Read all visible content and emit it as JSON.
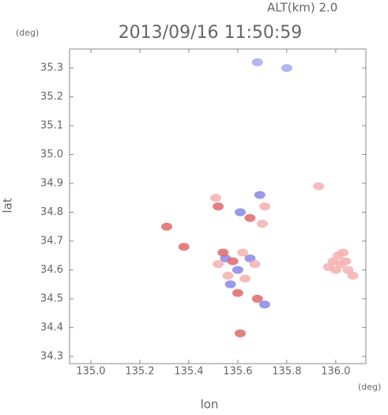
{
  "chart_data": {
    "type": "map",
    "title": "2013/09/16 11:50:59",
    "altitude_label": "ALT(km) 2.0",
    "y_unit": "(deg)",
    "x_unit": "(deg)",
    "xlabel": "lon",
    "ylabel": "lat",
    "xlim": [
      134.913,
      136.123
    ],
    "ylim": [
      34.275,
      35.366
    ],
    "xticks": [
      {
        "value": 135,
        "label": "135.0"
      },
      135.2,
      135.4,
      135.6,
      135.8,
      {
        "value": 136,
        "label": "136.0"
      }
    ],
    "yticks": [
      35.3,
      35.2,
      35.1,
      {
        "value": 35,
        "label": "35.0"
      },
      34.9,
      34.8,
      34.7,
      34.6,
      34.5,
      34.4,
      34.3
    ],
    "echoes": {
      "x": [
        135.68,
        135.8,
        136.01,
        136.03,
        135.99,
        136.02,
        136.05,
        136.07,
        136.0,
        135.97,
        136.04,
        135.52,
        135.55,
        135.58,
        135.6,
        135.56,
        135.62,
        135.65,
        135.57,
        135.6,
        135.63,
        135.54,
        135.67,
        135.69,
        135.71,
        135.65,
        135.7,
        135.61,
        135.51,
        135.52,
        135.31,
        135.38,
        135.61,
        135.71,
        135.68,
        135.93
      ],
      "y": [
        35.32,
        35.3,
        34.65,
        34.66,
        34.63,
        34.62,
        34.6,
        34.58,
        34.6,
        34.61,
        34.63,
        34.62,
        34.64,
        34.63,
        34.6,
        34.58,
        34.66,
        34.64,
        34.55,
        34.52,
        34.57,
        34.66,
        34.62,
        34.86,
        34.82,
        34.78,
        34.76,
        34.8,
        34.85,
        34.82,
        34.75,
        34.68,
        34.38,
        34.48,
        34.5,
        34.89
      ],
      "colors": [
        "#a8a8f0",
        "#a8a8f0",
        "#f5b0b0",
        "#f5b0b0",
        "#f5b0b0",
        "#f5b0b0",
        "#f5b0b0",
        "#f5b0b0",
        "#f5b0b0",
        "#f5b0b0",
        "#f5b0b0",
        "#f5b0b0",
        "#8888e8",
        "#e06868",
        "#8888e8",
        "#f5b0b0",
        "#f5b0b0",
        "#8888e8",
        "#8888e8",
        "#e06868",
        "#f5b0b0",
        "#e06868",
        "#f5b0b0",
        "#8888e8",
        "#f5b0b0",
        "#e06868",
        "#f5b0b0",
        "#8888e8",
        "#f5b0b0",
        "#e06868",
        "#e06868",
        "#e06868",
        "#e06868",
        "#8888e8",
        "#e06868",
        "#f5b0b0"
      ]
    }
  }
}
